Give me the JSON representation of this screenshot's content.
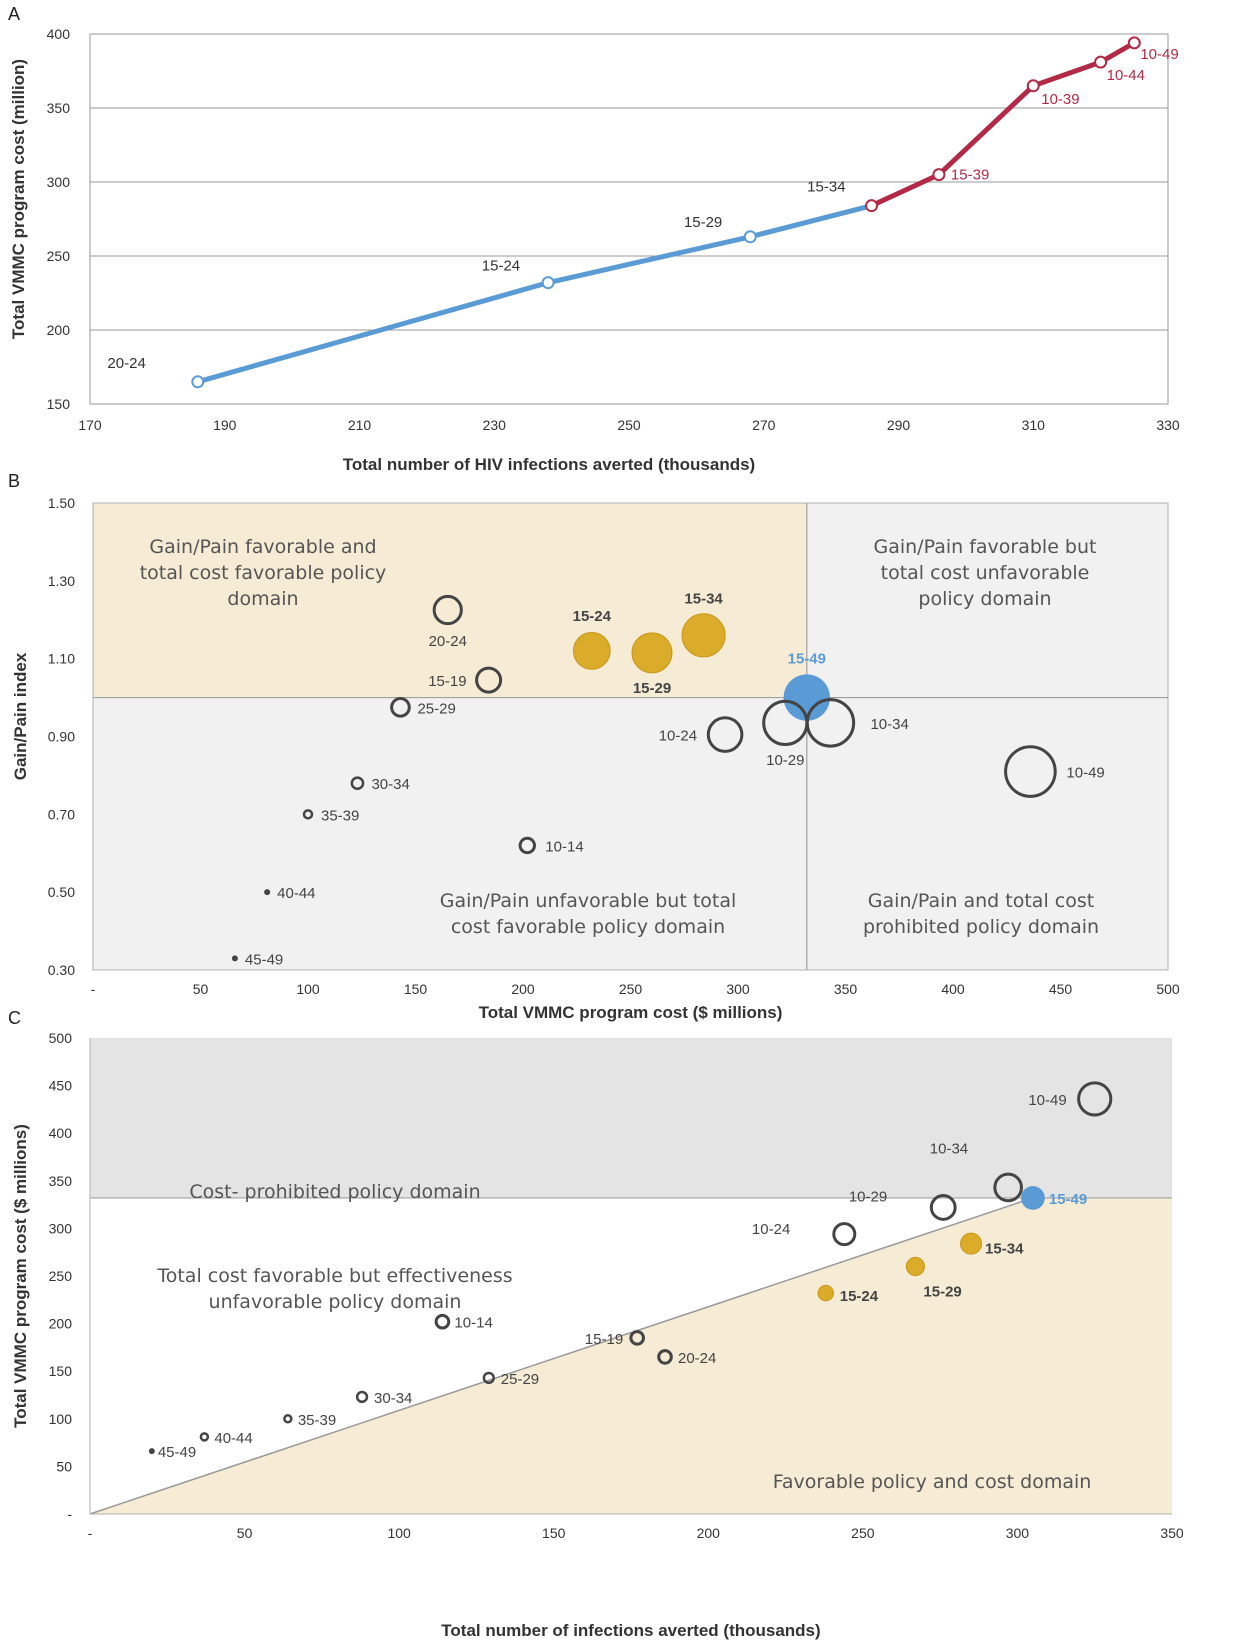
{
  "colors": {
    "blue": "#5b9bd5",
    "red": "#b22a45",
    "gold": "#dbac2a",
    "gold_stroke": "#c8961a",
    "ring": "#444444",
    "favorable_bg": "#f6ecd5",
    "neutral_bg": "#f1f1f1",
    "prohibited_bg": "#e4e4e4",
    "grid": "#9a9a9a"
  },
  "chart_data": [
    {
      "panel": "A",
      "type": "line",
      "xlabel": "Total number of HIV infections averted (thousands)",
      "ylabel": "Total VMMC program cost (million)",
      "xlim": [
        170,
        330
      ],
      "ylim": [
        150,
        400
      ],
      "xticks": [
        "170",
        "190",
        "210",
        "230",
        "250",
        "270",
        "290",
        "310",
        "330"
      ],
      "yticks": [
        "150",
        "200",
        "250",
        "300",
        "350",
        "400"
      ],
      "grid": "horizontal",
      "series": [
        {
          "color": "blue",
          "points": [
            {
              "label": "20-24",
              "x": 186,
              "y": 165
            },
            {
              "label": "15-24",
              "x": 238,
              "y": 232
            },
            {
              "label": "15-29",
              "x": 268,
              "y": 263
            }
          ]
        },
        {
          "color": "red",
          "points": [
            {
              "label": "15-34",
              "x": 286,
              "y": 284
            },
            {
              "label": "15-39",
              "x": 296,
              "y": 305
            },
            {
              "label": "10-39",
              "x": 310,
              "y": 365
            },
            {
              "label": "10-44",
              "x": 320,
              "y": 381
            },
            {
              "label": "10-49",
              "x": 325,
              "y": 394
            }
          ]
        }
      ]
    },
    {
      "panel": "B",
      "type": "scatter",
      "xlabel": "Total VMMC program cost ($ millions)",
      "ylabel": "Gain/Pain index",
      "xlim": [
        0,
        500
      ],
      "ylim": [
        0.3,
        1.5
      ],
      "xticks": [
        "-",
        "50",
        "100",
        "150",
        "200",
        "250",
        "300",
        "350",
        "400",
        "450",
        "500"
      ],
      "yticks": [
        "0.30",
        "0.50",
        "0.70",
        "0.90",
        "1.10",
        "1.30",
        "1.50"
      ],
      "divider_x": 332,
      "divider_y": 1.0,
      "domains": {
        "top_left": [
          "Gain/Pain favorable and",
          "total cost favorable  policy",
          "domain"
        ],
        "top_right": [
          "Gain/Pain favorable but",
          "total cost unfavorable",
          "policy domain"
        ],
        "bottom_left": [
          "Gain/Pain unfavorable but total",
          "cost favorable  policy domain"
        ],
        "bottom_right": [
          "Gain/Pain and total cost",
          "prohibited policy domain"
        ]
      },
      "points": [
        {
          "label": "45-49",
          "x": 66,
          "y": 0.33,
          "size": 1,
          "style": "dot"
        },
        {
          "label": "40-44",
          "x": 81,
          "y": 0.5,
          "size": 1,
          "style": "dot"
        },
        {
          "label": "35-39",
          "x": 100,
          "y": 0.7,
          "size": 2,
          "style": "ring"
        },
        {
          "label": "30-34",
          "x": 123,
          "y": 0.78,
          "size": 3,
          "style": "ring"
        },
        {
          "label": "10-14",
          "x": 202,
          "y": 0.62,
          "size": 4,
          "style": "ring"
        },
        {
          "label": "25-29",
          "x": 143,
          "y": 0.975,
          "size": 5,
          "style": "ring"
        },
        {
          "label": "15-19",
          "x": 184,
          "y": 1.045,
          "size": 7,
          "style": "ring"
        },
        {
          "label": "20-24",
          "x": 165,
          "y": 1.225,
          "size": 8,
          "style": "ring"
        },
        {
          "label": "15-24",
          "x": 232,
          "y": 1.12,
          "size": 11,
          "style": "gold"
        },
        {
          "label": "15-29",
          "x": 260,
          "y": 1.115,
          "size": 12,
          "style": "gold"
        },
        {
          "label": "15-34",
          "x": 284,
          "y": 1.16,
          "size": 13,
          "style": "gold"
        },
        {
          "label": "15-49",
          "x": 332,
          "y": 1.0,
          "size": 14,
          "style": "blue"
        },
        {
          "label": "10-24",
          "x": 294,
          "y": 0.905,
          "size": 10,
          "style": "ring"
        },
        {
          "label": "10-29",
          "x": 322,
          "y": 0.935,
          "size": 13,
          "style": "ring"
        },
        {
          "label": "10-34",
          "x": 343,
          "y": 0.935,
          "size": 14,
          "style": "ring"
        },
        {
          "label": "10-49",
          "x": 436,
          "y": 0.81,
          "size": 15,
          "style": "ring"
        }
      ]
    },
    {
      "panel": "C",
      "type": "scatter",
      "xlabel": "Total number of infections averted (thousands)",
      "ylabel": "Total VMMC program cost ($ millions)",
      "xlim": [
        0,
        350
      ],
      "ylim": [
        0,
        500
      ],
      "xticks": [
        "-",
        "50",
        "100",
        "150",
        "200",
        "250",
        "300",
        "350"
      ],
      "yticks": [
        "-",
        "50",
        "100",
        "150",
        "200",
        "250",
        "300",
        "350",
        "400",
        "450",
        "500"
      ],
      "cost_threshold": 332,
      "diagonal_end": [
        305,
        332
      ],
      "domains": {
        "prohibited": [
          "Cost- prohibited policy domain"
        ],
        "middle": [
          "Total cost favorable but effectiveness",
          "unfavorable policy domain"
        ],
        "favorable": [
          "Favorable policy and cost domain"
        ]
      },
      "points": [
        {
          "label": "45-49",
          "x": 20,
          "y": 66,
          "size": 1,
          "style": "dot"
        },
        {
          "label": "40-44",
          "x": 37,
          "y": 81,
          "size": 2,
          "style": "ring"
        },
        {
          "label": "35-39",
          "x": 64,
          "y": 100,
          "size": 2,
          "style": "ring"
        },
        {
          "label": "30-34",
          "x": 88,
          "y": 123,
          "size": 3,
          "style": "ring"
        },
        {
          "label": "25-29",
          "x": 129,
          "y": 143,
          "size": 3,
          "style": "ring"
        },
        {
          "label": "10-14",
          "x": 114,
          "y": 202,
          "size": 4,
          "style": "ring"
        },
        {
          "label": "15-19",
          "x": 177,
          "y": 185,
          "size": 4,
          "style": "ring"
        },
        {
          "label": "20-24",
          "x": 186,
          "y": 165,
          "size": 4,
          "style": "ring"
        },
        {
          "label": "15-24",
          "x": 238,
          "y": 232,
          "size": 5,
          "style": "gold"
        },
        {
          "label": "15-29",
          "x": 267,
          "y": 260,
          "size": 6,
          "style": "gold"
        },
        {
          "label": "15-34",
          "x": 285,
          "y": 284,
          "size": 7,
          "style": "gold"
        },
        {
          "label": "15-49",
          "x": 305,
          "y": 332,
          "size": 8,
          "style": "blue"
        },
        {
          "label": "10-24",
          "x": 244,
          "y": 294,
          "size": 7,
          "style": "ring"
        },
        {
          "label": "10-29",
          "x": 276,
          "y": 322,
          "size": 8,
          "style": "ring"
        },
        {
          "label": "10-34",
          "x": 297,
          "y": 343,
          "size": 9,
          "style": "ring"
        },
        {
          "label": "10-49",
          "x": 325,
          "y": 436,
          "size": 11,
          "style": "ring"
        }
      ]
    }
  ]
}
